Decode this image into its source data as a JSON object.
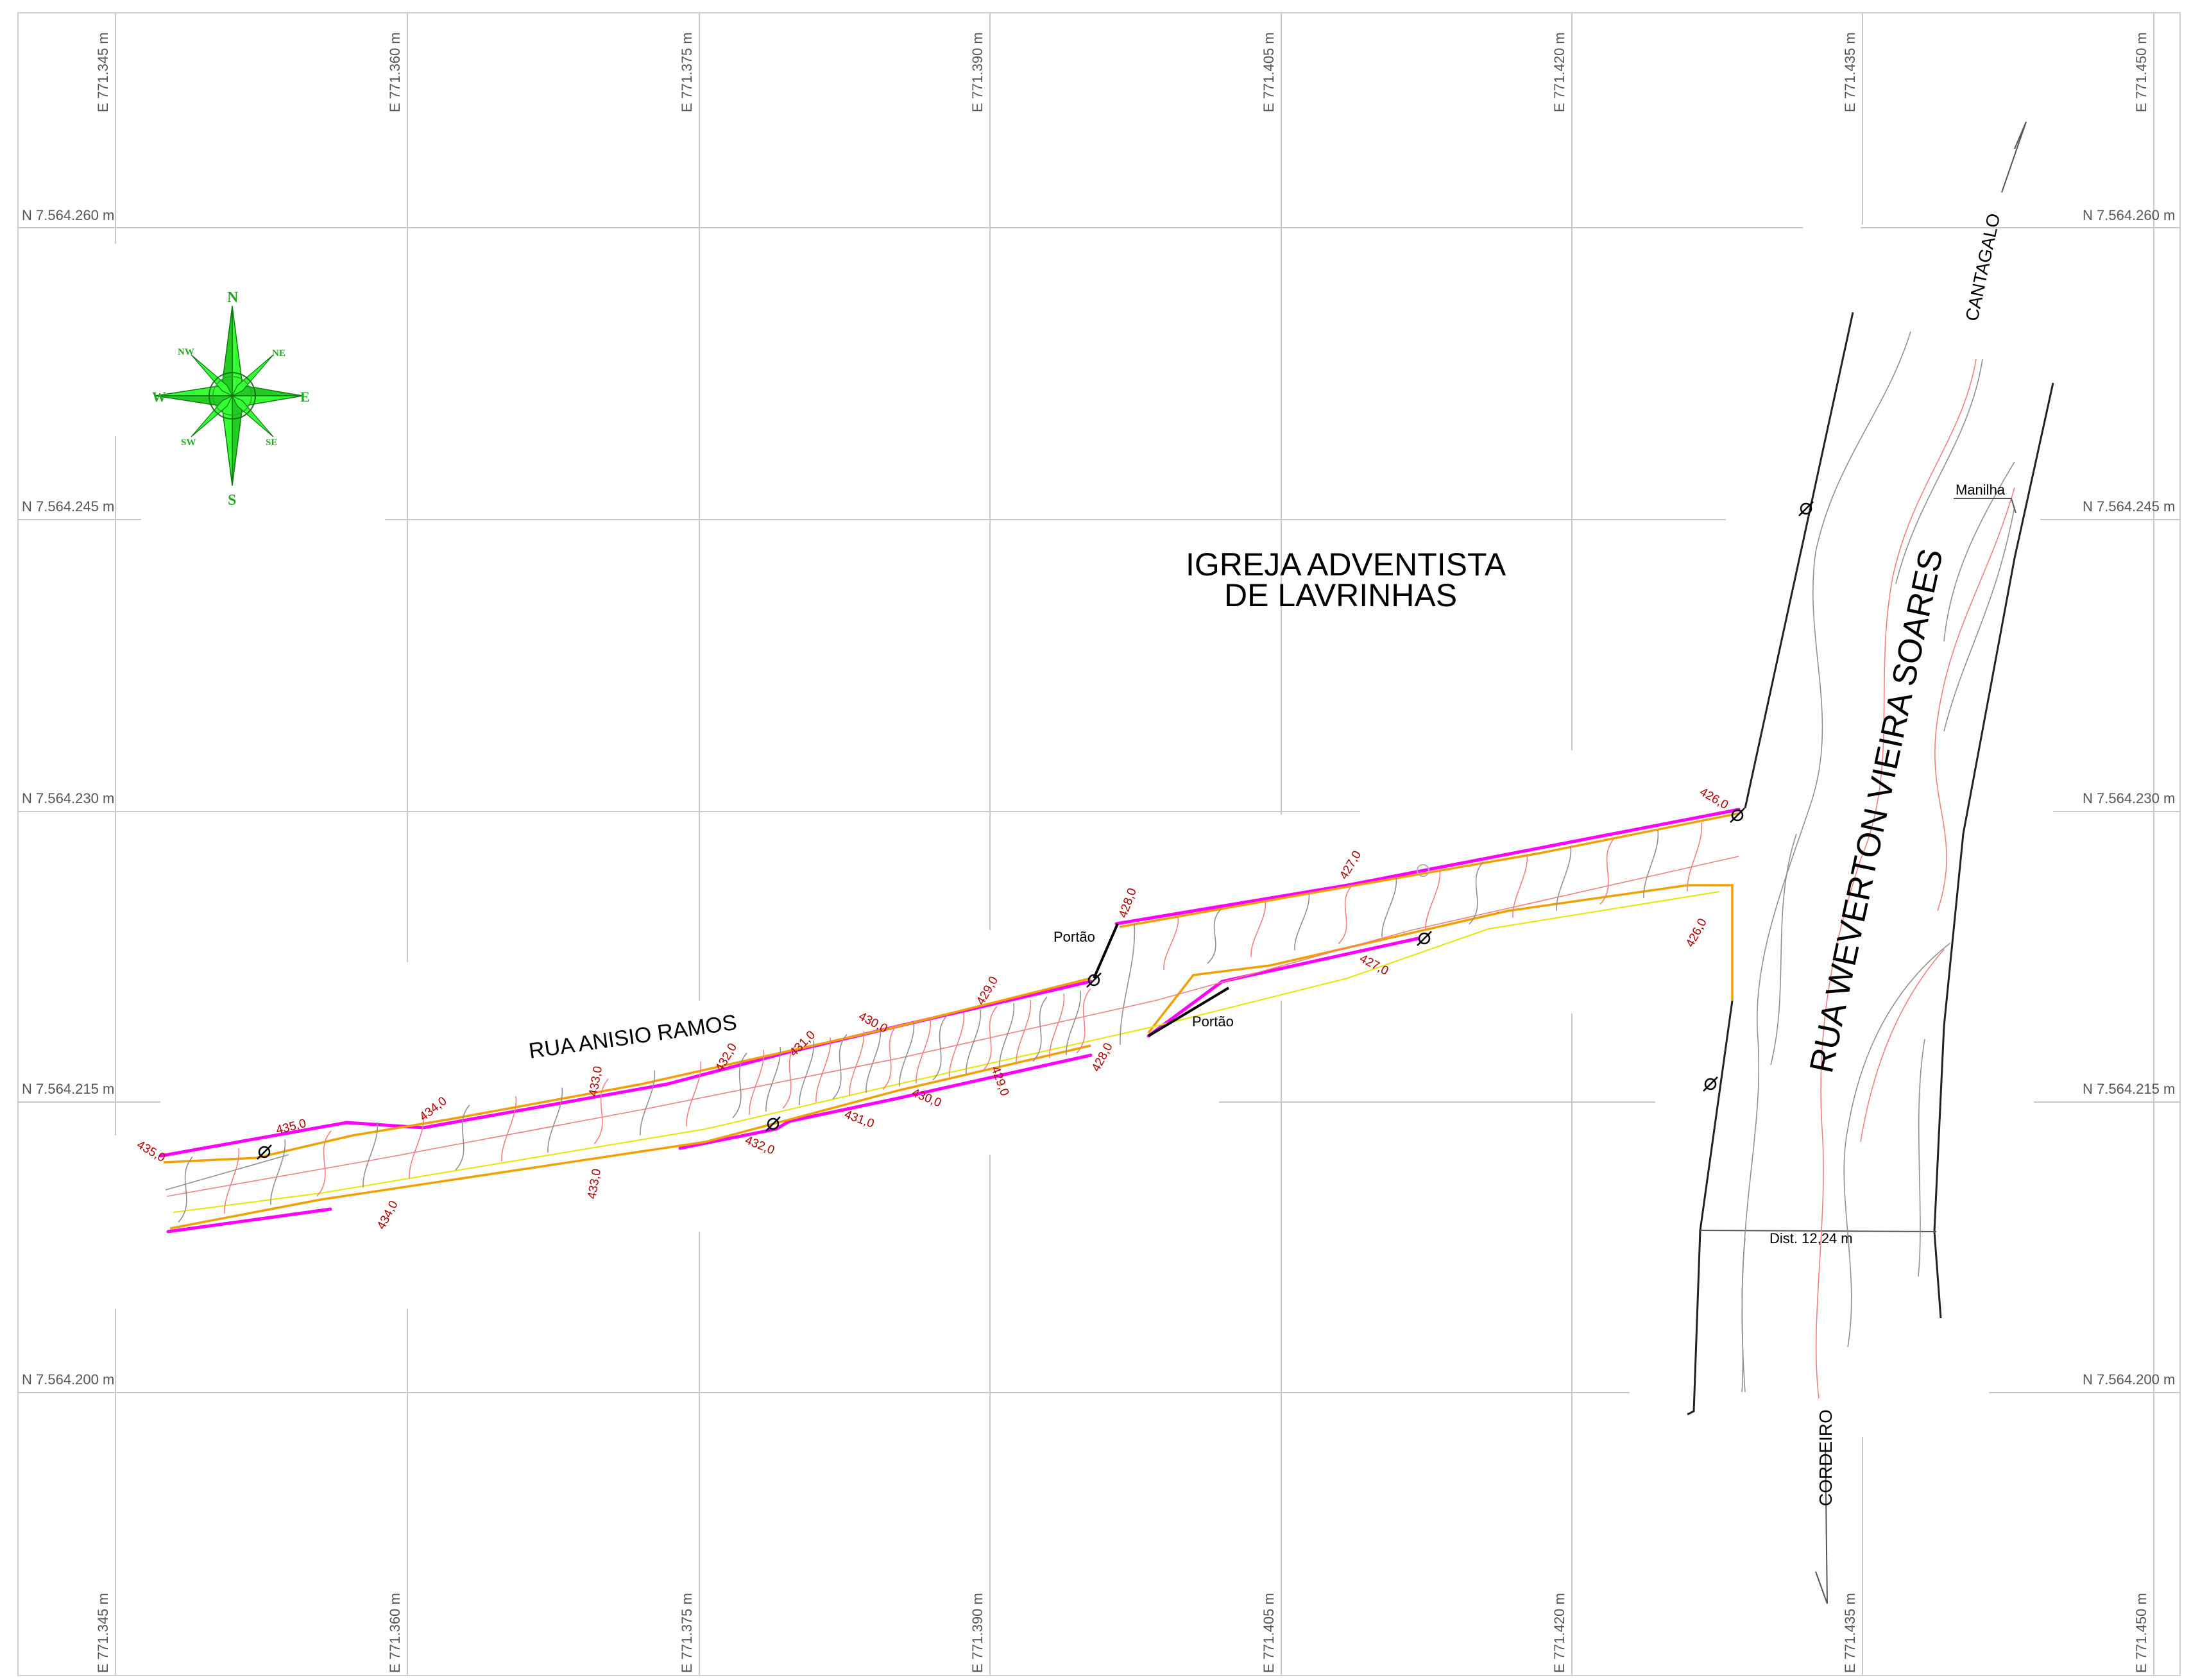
{
  "easting_labels": [
    "E 771.345 m",
    "E 771.360 m",
    "E 771.375 m",
    "E 771.390 m",
    "E 771.405 m",
    "E 771.420 m",
    "E 771.435 m",
    "E 771.450 m"
  ],
  "northing_labels": [
    "N 7.564.260 m",
    "N 7.564.245 m",
    "N 7.564.230 m",
    "N 7.564.215 m",
    "N 7.564.200 m"
  ],
  "compass": {
    "n": "N",
    "s": "S",
    "e": "E",
    "w": "W",
    "ne": "NE",
    "nw": "NW",
    "se": "SE",
    "sw": "SW",
    "color": "#33ff33"
  },
  "places": {
    "church_line1": "IGREJA  ADVENTISTA",
    "church_line2": "DE LAVRINHAS",
    "street_main": "RUA ANISIO RAMOS",
    "street_cross": "RUA WEVERTON VIEIRA SOARES",
    "to_north": "CANTAGALO",
    "to_south": "CORDEIRO",
    "culvert": "Manilha",
    "gate_1": "Portão",
    "gate_2": "Portão",
    "distance": "Dist. 12,24 m"
  },
  "elevations": [
    "435,0",
    "435,0",
    "434,0",
    "434,0",
    "433,0",
    "433,0",
    "432,0",
    "432,0",
    "431,0",
    "431,0",
    "430,0",
    "430,0",
    "429,0",
    "429,0",
    "428,0",
    "428,0",
    "427,0",
    "427,0",
    "426,0",
    "426,0"
  ],
  "colors": {
    "boundary": "#ff00ff",
    "curb": "#f0a000",
    "contour_red": "#f08080",
    "contour_grey": "#909090",
    "label_red": "#b00000"
  }
}
